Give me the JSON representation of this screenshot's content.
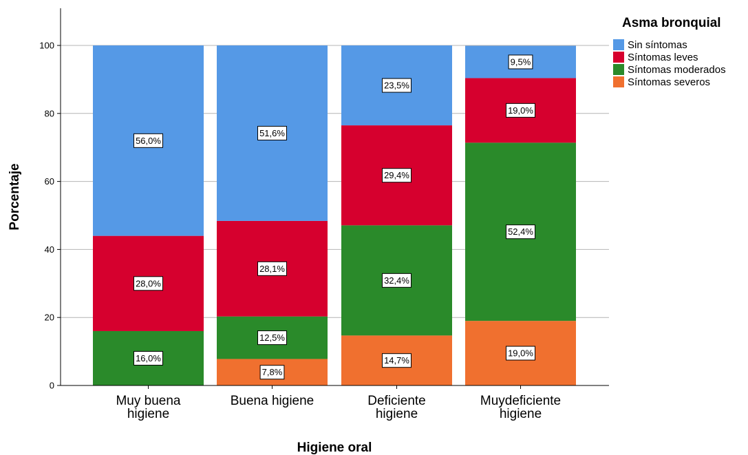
{
  "chart_data": {
    "type": "bar",
    "stacked": true,
    "title": "",
    "xlabel": "Higiene oral",
    "ylabel": "Porcentaje",
    "ylim": [
      0,
      110
    ],
    "yticks": [
      "0",
      "20",
      "40",
      "60",
      "80",
      "100"
    ],
    "grid": true,
    "legend_position": "top-right",
    "legend_title": "Asma bronquial",
    "categories": [
      [
        "Muy buena",
        "higiene"
      ],
      [
        "Buena higiene"
      ],
      [
        "Deficiente",
        "higiene"
      ],
      [
        "Muydeficiente",
        "higiene"
      ]
    ],
    "series": [
      {
        "name": "Síntomas severos",
        "color": "#f0702f",
        "values": [
          0,
          7.8,
          14.7,
          19.0
        ],
        "labels": [
          "",
          "7,8%",
          "14,7%",
          "19,0%"
        ]
      },
      {
        "name": "Síntomas moderados",
        "color": "#2a8a2a",
        "values": [
          16.0,
          12.5,
          32.4,
          52.4
        ],
        "labels": [
          "16,0%",
          "12,5%",
          "32,4%",
          "52,4%"
        ]
      },
      {
        "name": "Síntomas leves",
        "color": "#d6002e",
        "values": [
          28.0,
          28.1,
          29.4,
          19.0
        ],
        "labels": [
          "28,0%",
          "28,1%",
          "29,4%",
          "19,0%"
        ]
      },
      {
        "name": "Sin síntomas",
        "color": "#5599e6",
        "values": [
          56.0,
          51.6,
          23.5,
          9.5
        ],
        "labels": [
          "56,0%",
          "51,6%",
          "23,5%",
          "9,5%"
        ]
      }
    ],
    "legend_order": [
      "Sin síntomas",
      "Síntomas leves",
      "Síntomas moderados",
      "Síntomas severos"
    ]
  }
}
